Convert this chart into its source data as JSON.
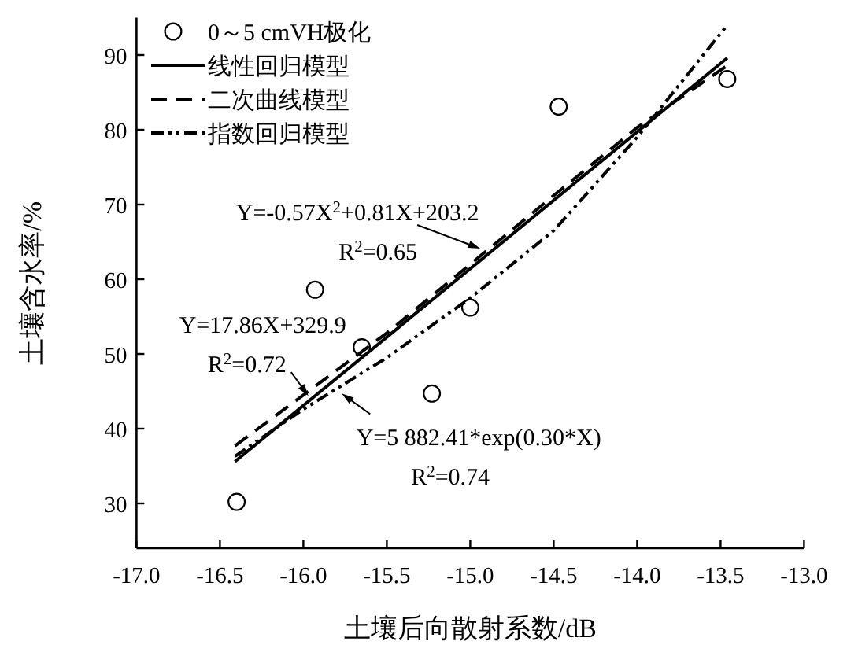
{
  "chart_data": {
    "type": "scatter",
    "xlabel": "土壤后向散射系数/dB",
    "ylabel": "土壤含水率/%",
    "xlim": [
      -17,
      -13
    ],
    "ylim": [
      24,
      95
    ],
    "xticks": [
      {
        "value": -17,
        "label": "-17.0"
      },
      {
        "value": -16.5,
        "label": "-16.5"
      },
      {
        "value": -16,
        "label": "-16.0"
      },
      {
        "value": -15.5,
        "label": "-15.5"
      },
      {
        "value": -15,
        "label": "-15.0"
      },
      {
        "value": -14.5,
        "label": "-14.5"
      },
      {
        "value": -14,
        "label": "-14.0"
      },
      {
        "value": -13.5,
        "label": "-13.5"
      },
      {
        "value": -13,
        "label": "-13.0"
      }
    ],
    "yticks": [
      30,
      40,
      50,
      60,
      70,
      80,
      90
    ],
    "grid": false,
    "legend": "top left",
    "series": [
      {
        "name": "0～5 cmVH极化",
        "type": "scatter",
        "marker": "circle",
        "color": "#000000",
        "x": [
          -16.4,
          -15.93,
          -15.65,
          -15.23,
          -15.0,
          -14.47,
          -13.46
        ],
        "values": [
          30.2,
          58.6,
          50.9,
          44.7,
          56.2,
          83.1,
          86.8
        ]
      },
      {
        "name": "线性回归模型",
        "type": "line",
        "line_style": "solid",
        "marker": "none",
        "color": "#000000",
        "x": [
          -16.41,
          -13.46
        ],
        "values": [
          35.6,
          89.6
        ]
      },
      {
        "name": "二次曲线模型",
        "type": "line",
        "line_style": "dashed",
        "marker": "none",
        "color": "#000000",
        "x": [
          -16.41,
          -15.5,
          -15.0,
          -14.5,
          -14.0,
          -13.46
        ],
        "values": [
          37.7,
          52.8,
          62,
          71.2,
          80.3,
          88.6
        ]
      },
      {
        "name": "指数回归模型",
        "type": "line",
        "line_style": "dotted",
        "marker": "none",
        "color": "#000000",
        "x": [
          -16.41,
          -16.0,
          -15.5,
          -15.0,
          -14.5,
          -14.0,
          -13.46
        ],
        "values": [
          36.3,
          42.6,
          49.5,
          57.5,
          66.5,
          79,
          94.0
        ]
      }
    ],
    "annotations": [
      {
        "text": "Y=-0.57X$^{2}$+0.81X+203.2",
        "x": -14.94,
        "y": 64.1
      },
      "R$^{2}$=0.65",
      {
        "text": "Y=17.86X+329.9",
        "x": -15.97,
        "y": 44.4
      },
      "R$^{2}$=0.72",
      {
        "text": "Y=5 882.41*exp(0.30*X)",
        "x": -15.77,
        "y": 44.7
      },
      "R$^{2}$=0.74"
    ]
  }
}
